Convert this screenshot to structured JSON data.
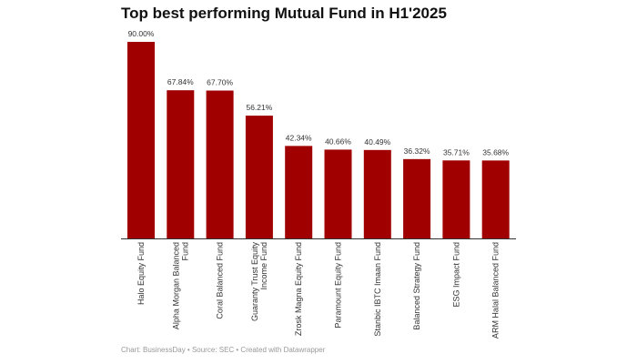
{
  "chart_data": {
    "type": "bar",
    "title": "Top best performing Mutual Fund in H1'2025",
    "categories": [
      [
        "Halo Equity Fund"
      ],
      [
        "Alpha Morgan Balanced",
        "Fund"
      ],
      [
        "Coral Balanced Fund"
      ],
      [
        "Guaranty Trust Equity",
        "Income Fund"
      ],
      [
        "Zrosk Magna Equity Fund"
      ],
      [
        "Paramount Equity Fund"
      ],
      [
        "Stanbic IBTC Imaan Fund"
      ],
      [
        "Balanced Strategy Fund"
      ],
      [
        "ESG Impact Fund"
      ],
      [
        "ARM Halal Balanced Fund"
      ]
    ],
    "values": [
      90.0,
      67.84,
      67.7,
      56.21,
      42.34,
      40.66,
      40.49,
      36.32,
      35.71,
      35.68
    ],
    "labels": [
      "90.00%",
      "67.84%",
      "67.70%",
      "56.21%",
      "42.34%",
      "40.66%",
      "40.49%",
      "36.32%",
      "35.71%",
      "35.68%"
    ],
    "xlabel": "",
    "ylabel": "",
    "ylim": [
      0,
      90
    ],
    "grid": false,
    "bar_color": "#a00000"
  },
  "footer": "Chart: BusinessDay • Source: SEC • Created with Datawrapper"
}
